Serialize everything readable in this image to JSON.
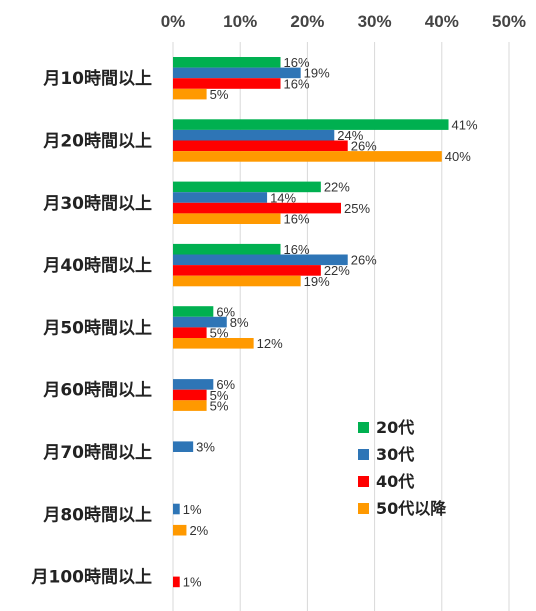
{
  "chart_data": {
    "type": "bar",
    "orientation": "horizontal",
    "categories": [
      "月10時間以上",
      "月20時間以上",
      "月30時間以上",
      "月40時間以上",
      "月50時間以上",
      "月60時間以上",
      "月70時間以上",
      "月80時間以上",
      "月100時間以上"
    ],
    "x_ticks": [
      "0%",
      "10%",
      "20%",
      "30%",
      "40%",
      "50%"
    ],
    "xlim": [
      0,
      50
    ],
    "grid": true,
    "legend_position": "bottom-right",
    "series": [
      {
        "name": "20代",
        "color": "#00b050",
        "values": [
          16,
          41,
          22,
          16,
          6,
          null,
          null,
          null,
          null
        ],
        "labels": [
          "16%",
          "41%",
          "22%",
          "16%",
          "6%",
          "",
          "",
          "",
          ""
        ]
      },
      {
        "name": "30代",
        "color": "#2e75b6",
        "values": [
          19,
          24,
          14,
          26,
          8,
          6,
          3,
          1,
          null
        ],
        "labels": [
          "19%",
          "24%",
          "14%",
          "26%",
          "8%",
          "6%",
          "3%",
          "1%",
          ""
        ]
      },
      {
        "name": "40代",
        "color": "#ff0000",
        "values": [
          16,
          26,
          25,
          22,
          5,
          5,
          null,
          null,
          1
        ],
        "labels": [
          "16%",
          "26%",
          "25%",
          "22%",
          "5%",
          "5%",
          "",
          "",
          "1%"
        ]
      },
      {
        "name": "50代以降",
        "color": "#ff9900",
        "values": [
          5,
          40,
          16,
          19,
          12,
          5,
          null,
          2,
          null
        ],
        "labels": [
          "5%",
          "40%",
          "16%",
          "19%",
          "12%",
          "5%",
          "",
          "2%",
          ""
        ]
      }
    ]
  }
}
